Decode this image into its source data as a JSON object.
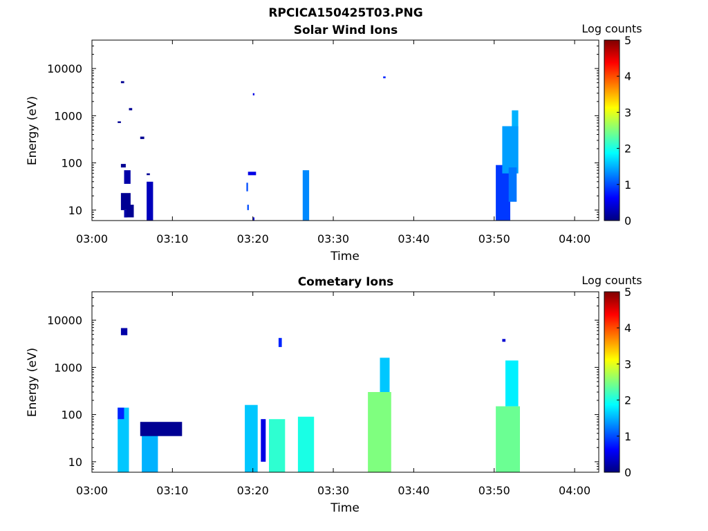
{
  "figure": {
    "title": "RPCICA150425T03.PNG"
  },
  "colors": {
    "colormap": [
      "#00007f",
      "#0000ff",
      "#007fff",
      "#00ffff",
      "#7fff7f",
      "#ffff00",
      "#ff7f00",
      "#ff0000",
      "#7f0000"
    ],
    "axis": "#000000"
  },
  "chart_data": [
    {
      "type": "heatmap",
      "title": "Solar Wind Ions",
      "xlabel": "Time",
      "ylabel": "Energy (eV)",
      "x_ticks": [
        "03:00",
        "03:10",
        "03:20",
        "03:30",
        "03:40",
        "03:50",
        "04:00"
      ],
      "xlim": [
        "03:00",
        "04:03"
      ],
      "y_scale": "log",
      "y_ticks": [
        "10",
        "100",
        "1000",
        "10000"
      ],
      "ylim": [
        6,
        40000
      ],
      "colorbar": {
        "label": "Log counts",
        "ticks": [
          "0",
          "1",
          "2",
          "3",
          "4",
          "5"
        ],
        "range": [
          0,
          5
        ]
      },
      "cells": [
        {
          "t0": "03:03.6",
          "t1": "03:04.8",
          "e0": 10,
          "e1": 23,
          "v": 0.1
        },
        {
          "t0": "03:04.0",
          "t1": "03:04.4",
          "e0": 7,
          "e1": 10,
          "v": 0.2
        },
        {
          "t0": "03:04.3",
          "t1": "03:05.2",
          "e0": 7,
          "e1": 13,
          "v": 0.1
        },
        {
          "t0": "03:03.6",
          "t1": "03:04.2",
          "e0": 80,
          "e1": 95,
          "v": 0.1
        },
        {
          "t0": "03:04.0",
          "t1": "03:04.8",
          "e0": 36,
          "e1": 70,
          "v": 0.2
        },
        {
          "t0": "03:03.2",
          "t1": "03:03.6",
          "e0": 700,
          "e1": 760,
          "v": 0.1
        },
        {
          "t0": "03:03.6",
          "t1": "03:04.0",
          "e0": 4900,
          "e1": 5400,
          "v": 0.1
        },
        {
          "t0": "03:04.6",
          "t1": "03:05.0",
          "e0": 1300,
          "e1": 1450,
          "v": 0.1
        },
        {
          "t0": "03:06.0",
          "t1": "03:06.5",
          "e0": 320,
          "e1": 360,
          "v": 0.1
        },
        {
          "t0": "03:06.8",
          "t1": "03:07.6",
          "e0": 6,
          "e1": 40,
          "v": 0.3
        },
        {
          "t0": "03:06.8",
          "t1": "03:07.2",
          "e0": 55,
          "e1": 60,
          "v": 0.1
        },
        {
          "t0": "03:19.2",
          "t1": "03:19.4",
          "e0": 25,
          "e1": 38,
          "v": 1.0
        },
        {
          "t0": "03:19.3",
          "t1": "03:19.5",
          "e0": 10,
          "e1": 13,
          "v": 1.0
        },
        {
          "t0": "03:19.4",
          "t1": "03:20.4",
          "e0": 55,
          "e1": 65,
          "v": 0.5
        },
        {
          "t0": "03:20.0",
          "t1": "03:20.2",
          "e0": 2700,
          "e1": 3000,
          "v": 0.5
        },
        {
          "t0": "03:20.0",
          "t1": "03:20.2",
          "e0": 6,
          "e1": 7,
          "v": 0.5
        },
        {
          "t0": "03:26.2",
          "t1": "03:27.0",
          "e0": 6,
          "e1": 70,
          "v": 1.3
        },
        {
          "t0": "03:36.2",
          "t1": "03:36.5",
          "e0": 6200,
          "e1": 6800,
          "v": 0.8
        },
        {
          "t0": "03:50.2",
          "t1": "03:52.0",
          "e0": 6,
          "e1": 90,
          "v": 0.9
        },
        {
          "t0": "03:51.0",
          "t1": "03:53.0",
          "e0": 60,
          "e1": 600,
          "v": 1.4
        },
        {
          "t0": "03:51.8",
          "t1": "03:52.8",
          "e0": 15,
          "e1": 80,
          "v": 1.2
        },
        {
          "t0": "03:52.2",
          "t1": "03:53.0",
          "e0": 600,
          "e1": 1300,
          "v": 1.5
        }
      ]
    },
    {
      "type": "heatmap",
      "title": "Cometary Ions",
      "xlabel": "Time",
      "ylabel": "Energy (eV)",
      "x_ticks": [
        "03:00",
        "03:10",
        "03:20",
        "03:30",
        "03:40",
        "03:50",
        "04:00"
      ],
      "xlim": [
        "03:00",
        "04:03"
      ],
      "y_scale": "log",
      "y_ticks": [
        "10",
        "100",
        "1000",
        "10000"
      ],
      "ylim": [
        6,
        40000
      ],
      "colorbar": {
        "label": "Log counts",
        "ticks": [
          "0",
          "1",
          "2",
          "3",
          "4",
          "5"
        ],
        "range": [
          0,
          5
        ]
      },
      "cells": [
        {
          "t0": "03:03.2",
          "t1": "03:04.6",
          "e0": 6,
          "e1": 140,
          "v": 1.6
        },
        {
          "t0": "03:03.2",
          "t1": "03:04.0",
          "e0": 80,
          "e1": 140,
          "v": 0.8
        },
        {
          "t0": "03:03.6",
          "t1": "03:04.4",
          "e0": 4800,
          "e1": 6800,
          "v": 0.2
        },
        {
          "t0": "03:06.2",
          "t1": "03:08.2",
          "e0": 6,
          "e1": 60,
          "v": 1.5
        },
        {
          "t0": "03:06.0",
          "t1": "03:11.2",
          "e0": 35,
          "e1": 70,
          "v": 0.1
        },
        {
          "t0": "03:19.0",
          "t1": "03:20.6",
          "e0": 6,
          "e1": 160,
          "v": 1.6
        },
        {
          "t0": "03:21.0",
          "t1": "03:21.6",
          "e0": 10,
          "e1": 80,
          "v": 0.5
        },
        {
          "t0": "03:22.0",
          "t1": "03:24.0",
          "e0": 6,
          "e1": 80,
          "v": 2.1
        },
        {
          "t0": "03:23.2",
          "t1": "03:23.6",
          "e0": 2700,
          "e1": 4200,
          "v": 0.8
        },
        {
          "t0": "03:25.6",
          "t1": "03:27.6",
          "e0": 6,
          "e1": 90,
          "v": 2.0
        },
        {
          "t0": "03:34.3",
          "t1": "03:37.2",
          "e0": 6,
          "e1": 300,
          "v": 2.5
        },
        {
          "t0": "03:35.8",
          "t1": "03:37.0",
          "e0": 300,
          "e1": 1600,
          "v": 1.6
        },
        {
          "t0": "03:50.2",
          "t1": "03:53.2",
          "e0": 6,
          "e1": 150,
          "v": 2.4
        },
        {
          "t0": "03:51.4",
          "t1": "03:53.0",
          "e0": 150,
          "e1": 1400,
          "v": 1.8
        },
        {
          "t0": "03:51.0",
          "t1": "03:51.4",
          "e0": 3500,
          "e1": 4000,
          "v": 0.4
        }
      ]
    }
  ]
}
